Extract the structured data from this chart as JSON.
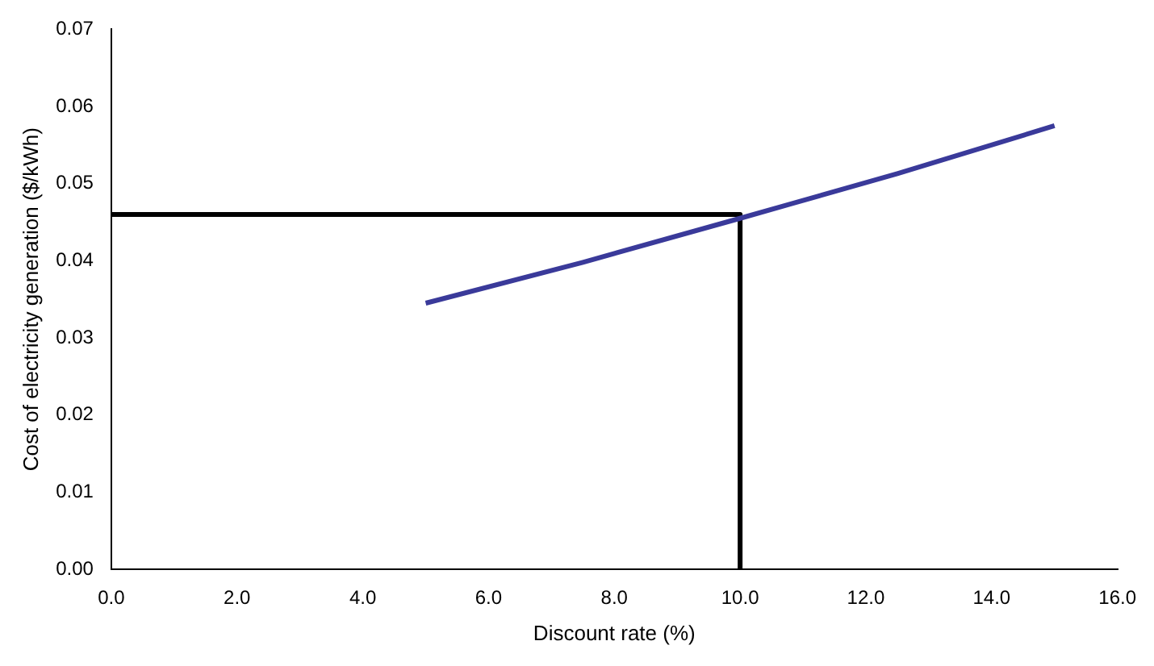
{
  "chart_data": {
    "type": "line",
    "xlabel": "Discount rate (%)",
    "ylabel": "Cost of electricity generation ($/kWh)",
    "xlim": [
      0,
      16
    ],
    "xticks": [
      {
        "value": 0,
        "label": "0.0"
      },
      {
        "value": 2,
        "label": "2.0"
      },
      {
        "value": 4,
        "label": "4.0"
      },
      {
        "value": 6,
        "label": "6.0"
      },
      {
        "value": 8,
        "label": "8.0"
      },
      {
        "value": 10,
        "label": "10.0"
      },
      {
        "value": 12,
        "label": "12.0"
      },
      {
        "value": 14,
        "label": "14.0"
      },
      {
        "value": 16,
        "label": "16.0"
      }
    ],
    "ylim": [
      0,
      0.07
    ],
    "yticks": [
      {
        "value": 0,
        "label": "0.00"
      },
      {
        "value": 0.01,
        "label": "0.01"
      },
      {
        "value": 0.02,
        "label": "0.02"
      },
      {
        "value": 0.03,
        "label": "0.03"
      },
      {
        "value": 0.04,
        "label": "0.04"
      },
      {
        "value": 0.05,
        "label": "0.05"
      },
      {
        "value": 0.06,
        "label": "0.06"
      },
      {
        "value": 0.07,
        "label": "0.07"
      }
    ],
    "grid": false,
    "legend": false,
    "marker": "none",
    "line_style": "solid",
    "series": [
      {
        "color": "#3a3a9a",
        "x": [
          5,
          7.5,
          10,
          12.5,
          15
        ],
        "values": [
          0.0345,
          0.0398,
          0.0455,
          0.0513,
          0.0575
        ]
      },
      {
        "color": "#000000",
        "x": [
          0,
          10,
          10
        ],
        "values": [
          0.046,
          0.046,
          0
        ]
      }
    ]
  }
}
